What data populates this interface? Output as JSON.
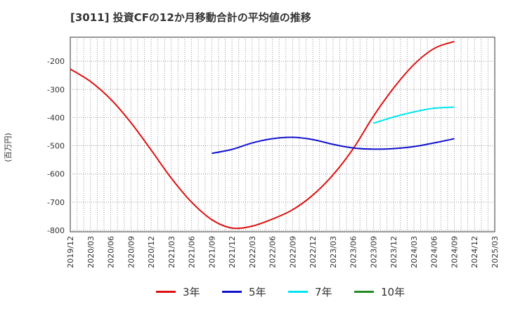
{
  "title": "[3011]  投資CFの12か月移動合計の平均値の推移",
  "y_unit": "(百万円)",
  "chart_data": {
    "type": "line",
    "title": "[3011]  投資CFの12か月移動合計の平均値の推移",
    "ylabel": "(百万円)",
    "xlabel": "",
    "ylim": [
      -805,
      -115
    ],
    "y_ticks": [
      -800,
      -700,
      -600,
      -500,
      -400,
      -300,
      -200
    ],
    "x_ticks": [
      "2019/12",
      "2020/03",
      "2020/06",
      "2020/09",
      "2020/12",
      "2021/03",
      "2021/06",
      "2021/09",
      "2021/12",
      "2022/03",
      "2022/06",
      "2022/09",
      "2022/12",
      "2023/03",
      "2023/06",
      "2023/09",
      "2023/12",
      "2024/03",
      "2024/06",
      "2024/09",
      "2024/12",
      "2025/03"
    ],
    "grid": true,
    "legend_position": "bottom",
    "series": [
      {
        "name": "3年",
        "color": "#dd1111",
        "x": [
          "2019/12",
          "2020/03",
          "2020/06",
          "2020/09",
          "2020/12",
          "2021/03",
          "2021/06",
          "2021/09",
          "2021/12",
          "2022/03",
          "2022/06",
          "2022/09",
          "2022/12",
          "2023/03",
          "2023/06",
          "2023/09",
          "2023/12",
          "2024/03",
          "2024/06",
          "2024/09"
        ],
        "values": [
          -228,
          -272,
          -335,
          -418,
          -515,
          -615,
          -700,
          -762,
          -792,
          -785,
          -760,
          -727,
          -675,
          -603,
          -510,
          -395,
          -295,
          -212,
          -155,
          -130
        ]
      },
      {
        "name": "5年",
        "color": "#1111cc",
        "x": [
          "2021/09",
          "2021/12",
          "2022/03",
          "2022/06",
          "2022/09",
          "2022/12",
          "2023/03",
          "2023/06",
          "2023/09",
          "2023/12",
          "2024/03",
          "2024/06",
          "2024/09"
        ],
        "values": [
          -527,
          -513,
          -490,
          -475,
          -470,
          -478,
          -495,
          -508,
          -512,
          -510,
          -503,
          -490,
          -475
        ]
      },
      {
        "name": "7年",
        "color": "#00e5ee",
        "x": [
          "2023/09",
          "2023/12",
          "2024/03",
          "2024/06",
          "2024/09"
        ],
        "values": [
          -420,
          -398,
          -380,
          -367,
          -363
        ]
      },
      {
        "name": "10年",
        "color": "#228b22",
        "x": [],
        "values": []
      }
    ]
  }
}
